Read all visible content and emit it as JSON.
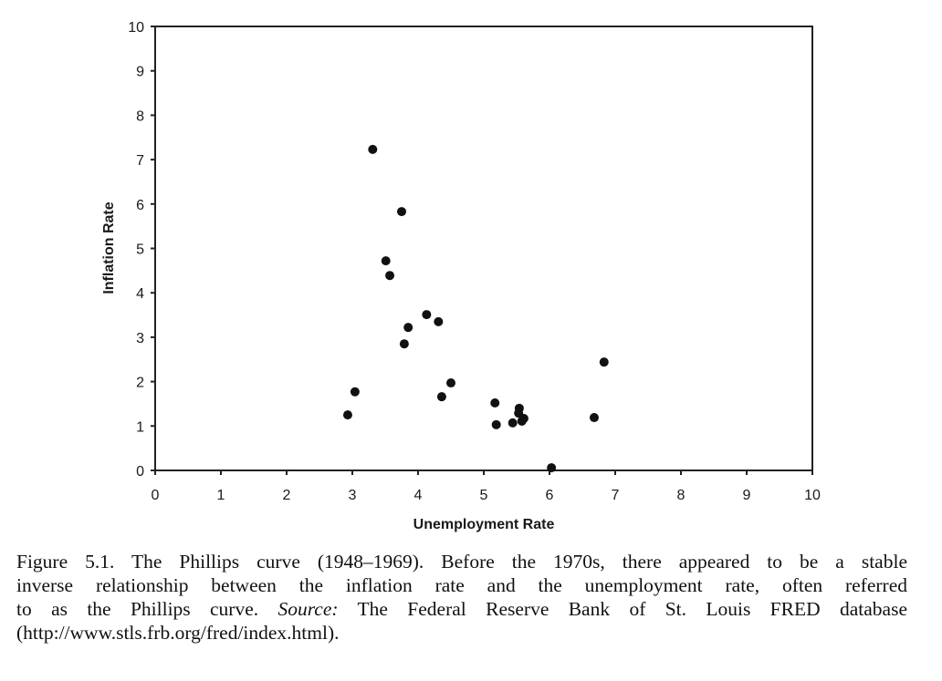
{
  "chart_data": {
    "type": "scatter",
    "title": "",
    "xlabel": "Unemployment Rate",
    "ylabel": "Inflation Rate",
    "xlim": [
      0,
      10
    ],
    "ylim": [
      0,
      10
    ],
    "x_ticks": [
      "0",
      "1",
      "2",
      "3",
      "4",
      "5",
      "6",
      "7",
      "8",
      "9",
      "10"
    ],
    "y_ticks": [
      "0",
      "1",
      "2",
      "3",
      "4",
      "5",
      "6",
      "7",
      "8",
      "9",
      "10"
    ],
    "grid": false,
    "legend": null,
    "marker_color": "#111111",
    "points": [
      {
        "x": 2.93,
        "y": 1.25
      },
      {
        "x": 3.04,
        "y": 1.77
      },
      {
        "x": 3.31,
        "y": 7.23
      },
      {
        "x": 3.75,
        "y": 5.83
      },
      {
        "x": 3.51,
        "y": 4.72
      },
      {
        "x": 3.57,
        "y": 4.39
      },
      {
        "x": 3.85,
        "y": 3.22
      },
      {
        "x": 3.79,
        "y": 2.85
      },
      {
        "x": 4.13,
        "y": 3.51
      },
      {
        "x": 4.31,
        "y": 3.35
      },
      {
        "x": 4.36,
        "y": 1.66
      },
      {
        "x": 4.5,
        "y": 1.97
      },
      {
        "x": 5.17,
        "y": 1.52
      },
      {
        "x": 5.19,
        "y": 1.03
      },
      {
        "x": 5.44,
        "y": 1.07
      },
      {
        "x": 5.54,
        "y": 1.4
      },
      {
        "x": 5.53,
        "y": 1.29
      },
      {
        "x": 5.61,
        "y": 1.17
      },
      {
        "x": 5.58,
        "y": 1.11
      },
      {
        "x": 6.03,
        "y": 0.06
      },
      {
        "x": 6.68,
        "y": 1.19
      },
      {
        "x": 6.83,
        "y": 2.44
      }
    ]
  },
  "caption": {
    "lines": [
      "Figure 5.1.  The Phillips curve (1948–1969). Before the 1970s, there appeared to be a stable",
      "inverse relationship between the inflation rate and the unemployment rate, often referred"
    ],
    "line3_pre": "to as the Phillips curve. ",
    "line3_italic": "Source:",
    "line3_post": " The Federal Reserve Bank of St. Louis FRED database",
    "line4": "(http://www.stls.frb.org/fred/index.html)."
  }
}
